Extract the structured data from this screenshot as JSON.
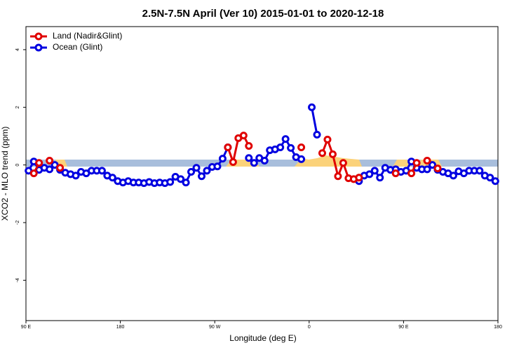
{
  "chart_data": {
    "type": "line",
    "title": "2.5N-7.5N April (Ver 10)   2015-01-01 to 2020-12-18",
    "xlabel": "Longitude (deg E)",
    "ylabel": "XCO2 - MLO trend (ppm)",
    "xlim": [
      90,
      540
    ],
    "ylim": [
      -5.4,
      4.8
    ],
    "xticks": [
      {
        "value": 90,
        "label": "90 E"
      },
      {
        "value": 180,
        "label": "180"
      },
      {
        "value": 270,
        "label": "90 W"
      },
      {
        "value": 360,
        "label": "0"
      },
      {
        "value": 450,
        "label": "90 E"
      },
      {
        "value": 540,
        "label": "180"
      }
    ],
    "yticks": [
      -4,
      -2,
      0,
      2,
      4
    ],
    "legend": "upper left",
    "x": [
      92.5,
      97.5,
      102.5,
      107.5,
      112.5,
      117.5,
      122.5,
      127.5,
      132.5,
      137.5,
      142.5,
      147.5,
      152.5,
      157.5,
      162.5,
      167.5,
      172.5,
      177.5,
      182.5,
      187.5,
      192.5,
      197.5,
      202.5,
      207.5,
      212.5,
      217.5,
      222.5,
      227.5,
      232.5,
      237.5,
      242.5,
      247.5,
      252.5,
      257.5,
      262.5,
      267.5,
      272.5,
      277.5,
      282.5,
      287.5,
      292.5,
      297.5,
      302.5,
      307.5,
      312.5,
      317.5,
      322.5,
      327.5,
      332.5,
      337.5,
      342.5,
      347.5,
      352.5,
      357.5,
      362.5,
      367.5,
      372.5,
      377.5,
      382.5,
      387.5,
      392.5,
      397.5,
      402.5,
      407.5,
      412.5,
      417.5,
      422.5,
      427.5,
      432.5,
      437.5,
      442.5,
      447.5,
      452.5,
      457.5,
      462.5,
      467.5,
      472.5,
      477.5,
      482.5,
      487.5,
      492.5,
      497.5,
      502.5,
      507.5,
      512.5,
      517.5,
      522.5,
      527.5,
      532.5,
      537.5
    ],
    "series": [
      {
        "name": "Land (Nadir&Glint)",
        "color": "#e00000",
        "values": [
          null,
          -0.29,
          0.07,
          null,
          0.15,
          null,
          -0.1,
          null,
          null,
          null,
          null,
          null,
          null,
          null,
          null,
          null,
          null,
          null,
          null,
          null,
          null,
          null,
          null,
          null,
          null,
          null,
          null,
          null,
          null,
          null,
          null,
          null,
          null,
          null,
          null,
          null,
          null,
          null,
          0.61,
          0.1,
          0.93,
          1.02,
          0.66,
          null,
          null,
          null,
          null,
          null,
          null,
          null,
          null,
          null,
          0.61,
          null,
          null,
          null,
          0.41,
          0.88,
          0.37,
          -0.39,
          0.07,
          -0.46,
          -0.49,
          -0.44,
          null,
          null,
          null,
          null,
          null,
          null,
          -0.29,
          null,
          null,
          -0.29,
          0.07,
          null,
          0.15,
          null,
          -0.12,
          null,
          null,
          null,
          null,
          null,
          null,
          null,
          null,
          null,
          null,
          null
        ]
      },
      {
        "name": "Ocean (Glint)",
        "color": "#0000e0",
        "values": [
          -0.2,
          0.12,
          -0.17,
          -0.1,
          -0.15,
          0,
          -0.17,
          -0.27,
          -0.32,
          -0.37,
          -0.24,
          -0.29,
          -0.2,
          -0.2,
          -0.2,
          -0.37,
          -0.44,
          -0.56,
          -0.61,
          -0.56,
          -0.61,
          -0.61,
          -0.63,
          -0.59,
          -0.63,
          -0.61,
          -0.63,
          -0.59,
          -0.41,
          -0.49,
          -0.61,
          -0.24,
          -0.1,
          -0.39,
          -0.2,
          -0.07,
          -0.05,
          0.22,
          0.61,
          null,
          null,
          null,
          0.24,
          0.07,
          0.24,
          0.15,
          0.51,
          0.54,
          0.61,
          0.9,
          0.59,
          0.27,
          0.2,
          null,
          2.0,
          1.05,
          null,
          null,
          null,
          null,
          null,
          null,
          null,
          -0.56,
          -0.37,
          -0.32,
          -0.2,
          -0.44,
          -0.1,
          -0.17,
          -0.15,
          -0.24,
          -0.2,
          0.12,
          -0.1,
          -0.15,
          -0.15,
          0,
          -0.17,
          -0.24,
          -0.29,
          -0.37,
          -0.22,
          -0.29,
          -0.2,
          -0.2,
          -0.2,
          -0.37,
          -0.44,
          -0.56
        ]
      }
    ]
  }
}
